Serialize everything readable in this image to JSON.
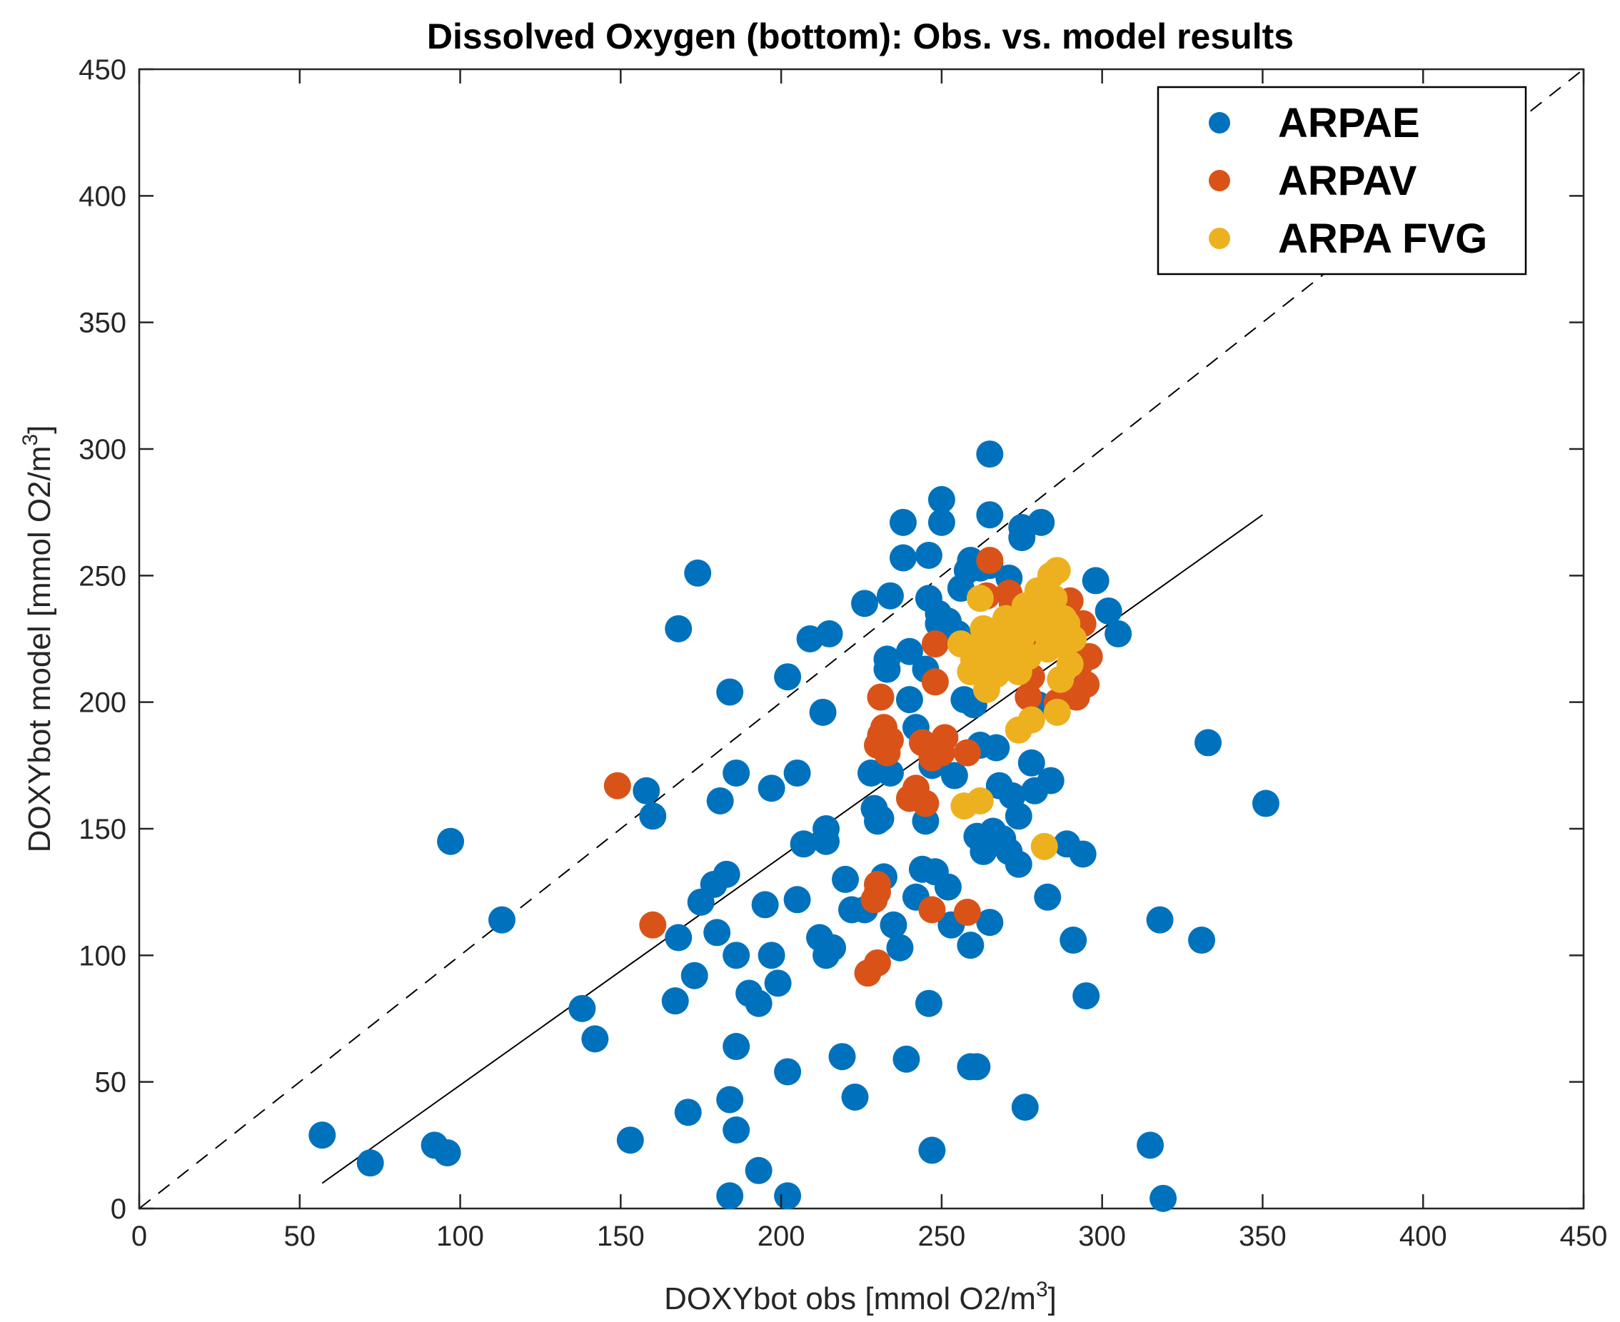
{
  "chart_data": {
    "type": "scatter",
    "title": "Dissolved Oxygen (bottom): Obs. vs. model results",
    "xlabel": "DOXYbot obs [mmol O2/m",
    "xlabel_sup": "3",
    "xlabel_end": "]",
    "ylabel": "DOXYbot model [mmol O2/m",
    "ylabel_sup": "3",
    "ylabel_end": "]",
    "xlim": [
      0,
      450
    ],
    "ylim": [
      0,
      450
    ],
    "xticks": [
      0,
      50,
      100,
      150,
      200,
      250,
      300,
      350,
      400,
      450
    ],
    "yticks": [
      0,
      50,
      100,
      150,
      200,
      250,
      300,
      350,
      400,
      450
    ],
    "grid": false,
    "legend_position": "top-right",
    "identity_line": {
      "x": [
        0,
        450
      ],
      "y": [
        0,
        450
      ],
      "style": "dashed"
    },
    "fit_line": {
      "x": [
        57,
        350
      ],
      "y": [
        10,
        274
      ],
      "style": "solid"
    },
    "series": [
      {
        "name": "ARPAE",
        "color": "#0072BD",
        "points": [
          [
            57,
            29
          ],
          [
            72,
            18
          ],
          [
            92,
            25
          ],
          [
            96,
            22
          ],
          [
            97,
            145
          ],
          [
            113,
            114
          ],
          [
            138,
            79
          ],
          [
            142,
            67
          ],
          [
            153,
            27
          ],
          [
            158,
            165
          ],
          [
            160,
            155
          ],
          [
            167,
            82
          ],
          [
            168,
            107
          ],
          [
            168,
            229
          ],
          [
            171,
            38
          ],
          [
            173,
            92
          ],
          [
            174,
            251
          ],
          [
            175,
            121
          ],
          [
            179,
            128
          ],
          [
            180,
            109
          ],
          [
            181,
            161
          ],
          [
            183,
            132
          ],
          [
            184,
            43
          ],
          [
            184,
            5
          ],
          [
            184,
            204
          ],
          [
            186,
            172
          ],
          [
            186,
            31
          ],
          [
            186,
            100
          ],
          [
            186,
            64
          ],
          [
            190,
            85
          ],
          [
            193,
            15
          ],
          [
            193,
            81
          ],
          [
            195,
            120
          ],
          [
            197,
            100
          ],
          [
            197,
            166
          ],
          [
            199,
            89
          ],
          [
            202,
            5
          ],
          [
            202,
            54
          ],
          [
            202,
            210
          ],
          [
            205,
            122
          ],
          [
            205,
            172
          ],
          [
            207,
            144
          ],
          [
            209,
            225
          ],
          [
            212,
            107
          ],
          [
            213,
            196
          ],
          [
            214,
            150
          ],
          [
            214,
            100
          ],
          [
            214,
            145
          ],
          [
            215,
            227
          ],
          [
            216,
            103
          ],
          [
            219,
            60
          ],
          [
            220,
            130
          ],
          [
            222,
            118
          ],
          [
            223,
            44
          ],
          [
            226,
            239
          ],
          [
            226,
            118
          ],
          [
            228,
            172
          ],
          [
            229,
            158
          ],
          [
            230,
            153
          ],
          [
            231,
            154
          ],
          [
            232,
            131
          ],
          [
            233,
            217
          ],
          [
            233,
            213
          ],
          [
            234,
            172
          ],
          [
            234,
            242
          ],
          [
            235,
            112
          ],
          [
            237,
            103
          ],
          [
            238,
            271
          ],
          [
            238,
            257
          ],
          [
            239,
            59
          ],
          [
            240,
            201
          ],
          [
            240,
            220
          ],
          [
            242,
            190
          ],
          [
            242,
            123
          ],
          [
            244,
            134
          ],
          [
            245,
            213
          ],
          [
            245,
            153
          ],
          [
            246,
            241
          ],
          [
            246,
            258
          ],
          [
            246,
            81
          ],
          [
            247,
            23
          ],
          [
            247,
            175
          ],
          [
            248,
            133
          ],
          [
            249,
            235
          ],
          [
            249,
            231
          ],
          [
            250,
            271
          ],
          [
            250,
            280
          ],
          [
            251,
            229
          ],
          [
            252,
            232
          ],
          [
            252,
            127
          ],
          [
            253,
            112
          ],
          [
            254,
            171
          ],
          [
            255,
            227
          ],
          [
            256,
            245
          ],
          [
            257,
            201
          ],
          [
            258,
            252
          ],
          [
            259,
            104
          ],
          [
            259,
            56
          ],
          [
            259,
            256
          ],
          [
            260,
            199
          ],
          [
            261,
            56
          ],
          [
            261,
            147
          ],
          [
            262,
            183
          ],
          [
            262,
            253
          ],
          [
            263,
            141
          ],
          [
            264,
            212
          ],
          [
            265,
            113
          ],
          [
            265,
            254
          ],
          [
            265,
            274
          ],
          [
            265,
            298
          ],
          [
            266,
            149
          ],
          [
            267,
            182
          ],
          [
            268,
            167
          ],
          [
            269,
            146
          ],
          [
            271,
            141
          ],
          [
            271,
            249
          ],
          [
            272,
            163
          ],
          [
            274,
            136
          ],
          [
            274,
            155
          ],
          [
            275,
            265
          ],
          [
            275,
            269
          ],
          [
            276,
            40
          ],
          [
            278,
            176
          ],
          [
            279,
            165
          ],
          [
            280,
            199
          ],
          [
            281,
            271
          ],
          [
            283,
            123
          ],
          [
            284,
            169
          ],
          [
            289,
            144
          ],
          [
            291,
            106
          ],
          [
            294,
            140
          ],
          [
            295,
            84
          ],
          [
            298,
            248
          ],
          [
            302,
            236
          ],
          [
            305,
            227
          ],
          [
            315,
            25
          ],
          [
            318,
            114
          ],
          [
            319,
            4
          ],
          [
            331,
            106
          ],
          [
            333,
            184
          ],
          [
            351,
            160
          ]
        ]
      },
      {
        "name": "ARPAV",
        "color": "#D95319",
        "points": [
          [
            149,
            167
          ],
          [
            160,
            112
          ],
          [
            227,
            93
          ],
          [
            229,
            122
          ],
          [
            230,
            97
          ],
          [
            230,
            128
          ],
          [
            230,
            125
          ],
          [
            230,
            183
          ],
          [
            231,
            187
          ],
          [
            231,
            202
          ],
          [
            232,
            190
          ],
          [
            233,
            180
          ],
          [
            234,
            185
          ],
          [
            240,
            162
          ],
          [
            242,
            166
          ],
          [
            244,
            184
          ],
          [
            245,
            160
          ],
          [
            247,
            178
          ],
          [
            247,
            118
          ],
          [
            248,
            223
          ],
          [
            248,
            208
          ],
          [
            250,
            180
          ],
          [
            251,
            186
          ],
          [
            258,
            180
          ],
          [
            258,
            117
          ],
          [
            264,
            242
          ],
          [
            265,
            256
          ],
          [
            271,
            243
          ],
          [
            272,
            239
          ],
          [
            274,
            236
          ],
          [
            276,
            217
          ],
          [
            277,
            202
          ],
          [
            278,
            210
          ],
          [
            280,
            223
          ],
          [
            282,
            227
          ],
          [
            286,
            200
          ],
          [
            290,
            240
          ],
          [
            292,
            202
          ],
          [
            293,
            215
          ],
          [
            294,
            231
          ],
          [
            295,
            207
          ],
          [
            296,
            218
          ]
        ]
      },
      {
        "name": "ARPA FVG",
        "color": "#EDB120",
        "points": [
          [
            256,
            223
          ],
          [
            257,
            159
          ],
          [
            259,
            212
          ],
          [
            260,
            217
          ],
          [
            261,
            222
          ],
          [
            262,
            161
          ],
          [
            262,
            241
          ],
          [
            263,
            229
          ],
          [
            264,
            205
          ],
          [
            265,
            212
          ],
          [
            265,
            219
          ],
          [
            266,
            228
          ],
          [
            267,
            211
          ],
          [
            268,
            222
          ],
          [
            269,
            215
          ],
          [
            270,
            233
          ],
          [
            271,
            223
          ],
          [
            272,
            220
          ],
          [
            273,
            229
          ],
          [
            274,
            212
          ],
          [
            274,
            189
          ],
          [
            275,
            226
          ],
          [
            276,
            238
          ],
          [
            277,
            218
          ],
          [
            278,
            193
          ],
          [
            279,
            232
          ],
          [
            280,
            244
          ],
          [
            281,
            236
          ],
          [
            282,
            143
          ],
          [
            282,
            228
          ],
          [
            283,
            221
          ],
          [
            284,
            250
          ],
          [
            285,
            241
          ],
          [
            286,
            196
          ],
          [
            286,
            223
          ],
          [
            286,
            252
          ],
          [
            287,
            209
          ],
          [
            288,
            233
          ],
          [
            289,
            231
          ],
          [
            290,
            215
          ],
          [
            291,
            225
          ]
        ]
      }
    ]
  }
}
